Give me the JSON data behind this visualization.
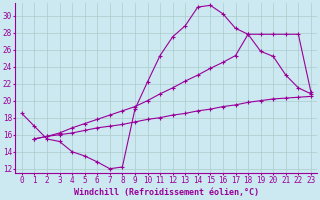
{
  "line1_x": [
    0,
    1,
    2,
    3,
    4,
    5,
    6,
    7,
    8,
    9,
    10,
    11,
    12,
    13,
    14,
    15,
    16,
    17,
    18,
    19,
    20,
    21,
    22,
    23
  ],
  "line1_y": [
    18.5,
    17.0,
    15.5,
    15.2,
    14.0,
    13.5,
    12.8,
    12.0,
    12.2,
    19.0,
    22.2,
    25.3,
    27.5,
    28.8,
    31.0,
    31.2,
    30.2,
    28.5,
    27.8,
    25.8,
    25.2,
    23.0,
    21.5,
    20.8
  ],
  "line2_x": [
    1,
    2,
    3,
    4,
    5,
    6,
    7,
    8,
    9,
    10,
    11,
    12,
    13,
    14,
    15,
    16,
    17,
    18,
    19,
    20,
    21,
    22,
    23
  ],
  "line2_y": [
    15.5,
    15.8,
    16.2,
    16.8,
    17.3,
    17.8,
    18.3,
    18.8,
    19.3,
    20.0,
    20.8,
    21.5,
    22.3,
    23.0,
    23.8,
    24.5,
    25.3,
    27.8,
    27.8,
    27.8,
    27.8,
    27.8,
    21.0
  ],
  "line3_x": [
    1,
    2,
    3,
    4,
    5,
    6,
    7,
    8,
    9,
    10,
    11,
    12,
    13,
    14,
    15,
    16,
    17,
    18,
    19,
    20,
    21,
    22,
    23
  ],
  "line3_y": [
    15.5,
    15.8,
    16.0,
    16.2,
    16.5,
    16.8,
    17.0,
    17.2,
    17.5,
    17.8,
    18.0,
    18.3,
    18.5,
    18.8,
    19.0,
    19.3,
    19.5,
    19.8,
    20.0,
    20.2,
    20.3,
    20.4,
    20.5
  ],
  "color": "#990099",
  "bg_color": "#cce8f0",
  "grid_color": "#aacccc",
  "xlabel": "Windchill (Refroidissement éolien,°C)",
  "xlim": [
    0,
    23
  ],
  "ylim": [
    12,
    31
  ],
  "yticks": [
    12,
    14,
    16,
    18,
    20,
    22,
    24,
    26,
    28,
    30
  ],
  "xticks": [
    0,
    1,
    2,
    3,
    4,
    5,
    6,
    7,
    8,
    9,
    10,
    11,
    12,
    13,
    14,
    15,
    16,
    17,
    18,
    19,
    20,
    21,
    22,
    23
  ],
  "label_fontsize": 6,
  "tick_fontsize": 5.5
}
